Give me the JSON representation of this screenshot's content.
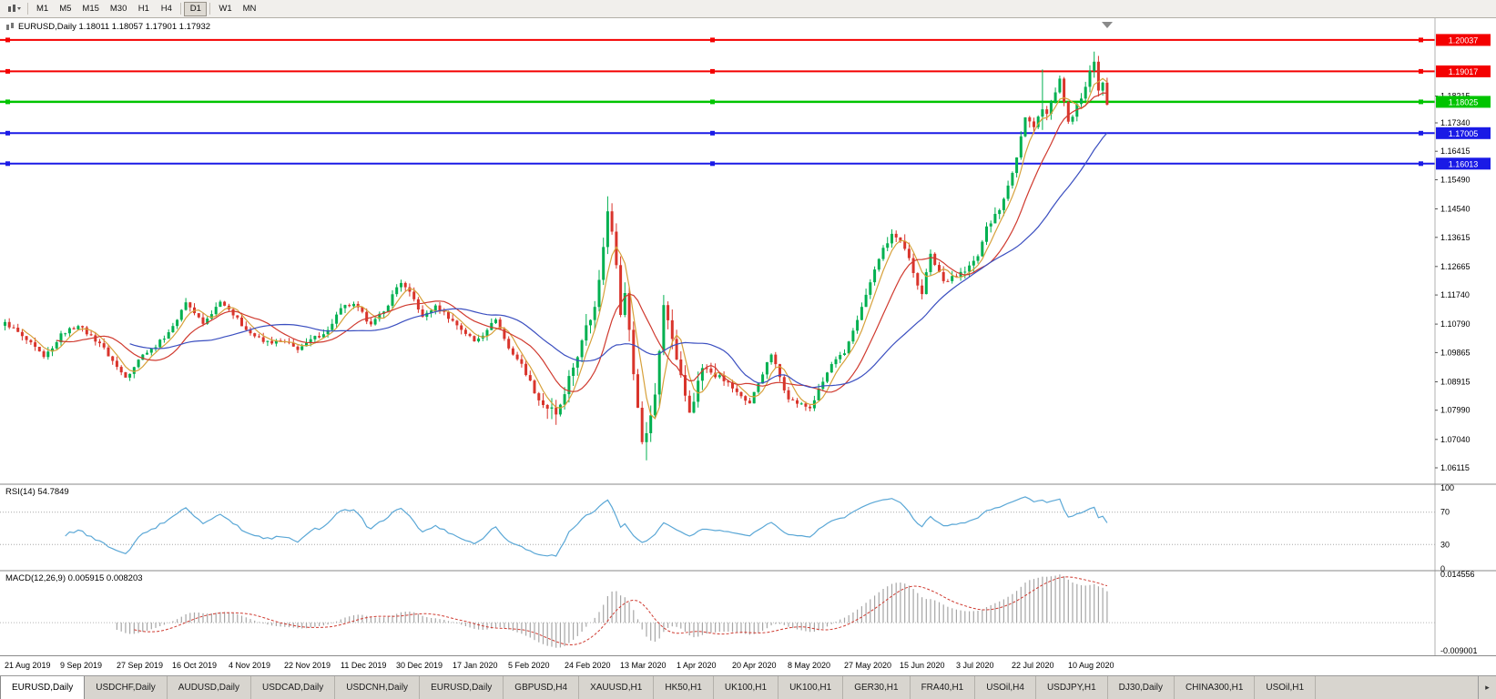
{
  "toolbar": {
    "timeframes": [
      "M1",
      "M5",
      "M15",
      "M30",
      "H1",
      "H4",
      "D1",
      "W1",
      "MN"
    ],
    "active_timeframe": "D1",
    "separators_after": [
      "H4",
      "D1"
    ]
  },
  "tabs": {
    "labels": [
      "EURUSD,Daily",
      "USDCHF,Daily",
      "AUDUSD,Daily",
      "USDCAD,Daily",
      "USDCNH,Daily",
      "EURUSD,Daily",
      "GBPUSD,H4",
      "XAUUSD,H1",
      "HK50,H1",
      "UK100,H1",
      "UK100,H1",
      "GER30,H1",
      "FRA40,H1",
      "USOil,H4",
      "USDJPY,H1",
      "DJ30,Daily",
      "CHINA300,H1",
      "USOil,H1"
    ],
    "active_index": 0,
    "scroll_icon": "▸"
  },
  "chart_data": {
    "type": "candlestick",
    "symbol": "EURUSD",
    "timeframe": "Daily",
    "header": "EURUSD,Daily 1.18011 1.18057 1.17901 1.17932",
    "ohlc": {
      "open": "1.18011",
      "high": "1.18057",
      "low": "1.17901",
      "close": "1.17932"
    },
    "price_range": [
      1.057,
      1.2045
    ],
    "num_bars": 257,
    "bars_per_label": 13,
    "x_labels": [
      "21 Aug 2019",
      "9 Sep 2019",
      "27 Sep 2019",
      "16 Oct 2019",
      "4 Nov 2019",
      "22 Nov 2019",
      "11 Dec 2019",
      "30 Dec 2019",
      "17 Jan 2020",
      "5 Feb 2020",
      "24 Feb 2020",
      "13 Mar 2020",
      "1 Apr 2020",
      "20 Apr 2020",
      "8 May 2020",
      "27 May 2020",
      "15 Jun 2020",
      "3 Jul 2020",
      "22 Jul 2020",
      "10 Aug 2020"
    ],
    "price_axis_labels": [
      "1.18215",
      "1.17340",
      "1.16415",
      "1.15490",
      "1.14540",
      "1.13615",
      "1.12665",
      "1.11740",
      "1.10790",
      "1.09865",
      "1.08915",
      "1.07990",
      "1.07040",
      "1.06115"
    ],
    "hlines": [
      {
        "price": 1.20037,
        "label": "1.20037",
        "color": "#f40000",
        "width": 2
      },
      {
        "price": 1.19017,
        "label": "1.19017",
        "color": "#f40000",
        "width": 2
      },
      {
        "price": 1.18025,
        "label": "1.18025",
        "color": "#00c400",
        "width": 2.5
      },
      {
        "price": 1.17005,
        "label": "1.17005",
        "color": "#1a1ae6",
        "width": 2
      },
      {
        "price": 1.16013,
        "label": "1.16013",
        "color": "#1a1ae6",
        "width": 2
      }
    ],
    "candle_up_color": "#00b050",
    "candle_down_color": "#d9342b",
    "close_anchors": [
      [
        0,
        1.1086
      ],
      [
        4,
        1.104
      ],
      [
        9,
        1.0972
      ],
      [
        11,
        1.1
      ],
      [
        13,
        1.1049
      ],
      [
        17,
        1.1073
      ],
      [
        22,
        1.1017
      ],
      [
        26,
        1.094
      ],
      [
        28,
        1.0905
      ],
      [
        32,
        1.098
      ],
      [
        35,
        1.1004
      ],
      [
        39,
        1.1073
      ],
      [
        42,
        1.115
      ],
      [
        46,
        1.108
      ],
      [
        50,
        1.1152
      ],
      [
        52,
        1.1127
      ],
      [
        56,
        1.106
      ],
      [
        60,
        1.1021
      ],
      [
        65,
        1.1021
      ],
      [
        68,
        1.0995
      ],
      [
        70,
        1.1018
      ],
      [
        75,
        1.106
      ],
      [
        78,
        1.1131
      ],
      [
        81,
        1.1145
      ],
      [
        85,
        1.1078
      ],
      [
        88,
        1.112
      ],
      [
        91,
        1.1199
      ],
      [
        92,
        1.1213
      ],
      [
        95,
        1.116
      ],
      [
        97,
        1.1103
      ],
      [
        100,
        1.114
      ],
      [
        104,
        1.109
      ],
      [
        109,
        1.1023
      ],
      [
        112,
        1.106
      ],
      [
        114,
        1.1094
      ],
      [
        117,
        1.1
      ],
      [
        120,
        1.095
      ],
      [
        124,
        1.0831
      ],
      [
        128,
        1.0785
      ],
      [
        130,
        1.0851
      ],
      [
        134,
        1.1026
      ],
      [
        137,
        1.1135
      ],
      [
        139,
        1.133
      ],
      [
        140,
        1.1446
      ],
      [
        141,
        1.138
      ],
      [
        142,
        1.1271
      ],
      [
        143,
        1.1109
      ],
      [
        144,
        1.118
      ],
      [
        146,
        1.0916
      ],
      [
        148,
        1.0695
      ],
      [
        149,
        1.0724
      ],
      [
        151,
        1.085
      ],
      [
        153,
        1.1141
      ],
      [
        155,
        1.1031
      ],
      [
        156,
        1.0964
      ],
      [
        159,
        1.0791
      ],
      [
        162,
        1.0936
      ],
      [
        166,
        1.0913
      ],
      [
        170,
        1.0858
      ],
      [
        173,
        1.0821
      ],
      [
        177,
        1.0955
      ],
      [
        178,
        1.098
      ],
      [
        182,
        1.0834
      ],
      [
        187,
        1.0805
      ],
      [
        192,
        1.0949
      ],
      [
        195,
        1.0984
      ],
      [
        199,
        1.1135
      ],
      [
        203,
        1.1291
      ],
      [
        206,
        1.1373
      ],
      [
        209,
        1.1324
      ],
      [
        213,
        1.1177
      ],
      [
        215,
        1.1308
      ],
      [
        218,
        1.1219
      ],
      [
        221,
        1.1234
      ],
      [
        224,
        1.127
      ],
      [
        226,
        1.13
      ],
      [
        228,
        1.1397
      ],
      [
        231,
        1.145
      ],
      [
        234,
        1.1571
      ],
      [
        237,
        1.1752
      ],
      [
        239,
        1.172
      ],
      [
        241,
        1.1778
      ],
      [
        242,
        1.1763
      ],
      [
        245,
        1.1878
      ],
      [
        247,
        1.1738
      ],
      [
        250,
        1.1813
      ],
      [
        253,
        1.1933
      ],
      [
        254,
        1.1839
      ],
      [
        255,
        1.1865
      ],
      [
        256,
        1.17932
      ]
    ],
    "wick_extremes": [
      [
        140,
        "high",
        1.1495
      ],
      [
        149,
        "low",
        1.0636
      ],
      [
        241,
        "high",
        1.1908
      ],
      [
        241,
        "low",
        1.1711
      ],
      [
        253,
        "high",
        1.1966
      ]
    ],
    "moving_averages": [
      {
        "name": "fast",
        "period": 5,
        "color": "#d7a13b"
      },
      {
        "name": "medium",
        "period": 13,
        "color": "#d03a2f"
      },
      {
        "name": "slow",
        "period": 30,
        "color": "#3b4fc0"
      }
    ],
    "indicators": {
      "rsi": {
        "label": "RSI(14) 54.7849",
        "period": 14,
        "value": 54.7849,
        "levels": [
          "100",
          "70",
          "30",
          "0"
        ],
        "dotted_levels": [
          70,
          30
        ],
        "color": "#5aa7d6"
      },
      "macd": {
        "label": "MACD(12,26,9) 0.005915 0.008203",
        "fast": 12,
        "slow": 26,
        "signal": 9,
        "values": [
          "0.005915",
          "0.008203"
        ],
        "axis_labels": [
          "0.014556",
          "-0.009001"
        ],
        "hist_color": "#a6a6a6",
        "signal_color": "#cf3b31"
      }
    }
  }
}
